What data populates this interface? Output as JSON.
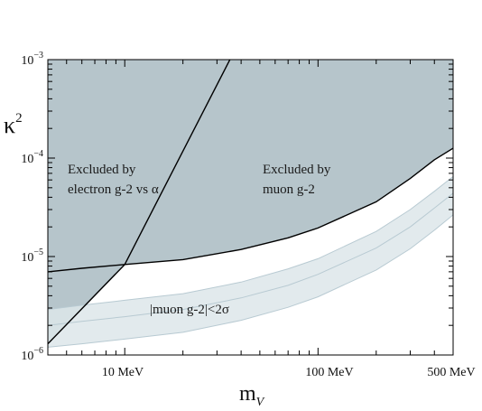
{
  "chart_data": {
    "type": "area",
    "title": "",
    "xlabel": {
      "base": "m",
      "sub": "V"
    },
    "ylabel": {
      "base": "κ",
      "sup": "2"
    },
    "x_scale": "log",
    "y_scale": "log",
    "xlim": [
      4,
      500
    ],
    "ylim": [
      1e-06,
      0.001
    ],
    "x_unit": "MeV",
    "x_tick_labels": [
      {
        "value": 10,
        "label": "10 MeV"
      },
      {
        "value": 100,
        "label": "100 MeV"
      },
      {
        "value": 500,
        "label": "500 MeV"
      }
    ],
    "y_tick_labels": [
      {
        "value": 1e-06,
        "base": "10",
        "exp": "−6"
      },
      {
        "value": 1e-05,
        "base": "10",
        "exp": "−5"
      },
      {
        "value": 0.0001,
        "base": "10",
        "exp": "−4"
      },
      {
        "value": 0.001,
        "base": "10",
        "exp": "−3"
      }
    ],
    "grid": false,
    "series": [
      {
        "key": "muon",
        "label": [
          "Excluded by",
          "muon g-2"
        ],
        "fill": "#b6c5cb",
        "boundary": [
          [
            4,
            7e-06
          ],
          [
            6,
            7.6e-06
          ],
          [
            10,
            8.3e-06
          ],
          [
            20,
            9.3e-06
          ],
          [
            40,
            1.18e-05
          ],
          [
            70,
            1.55e-05
          ],
          [
            100,
            1.95e-05
          ],
          [
            200,
            3.6e-05
          ],
          [
            300,
            6.2e-05
          ],
          [
            400,
            9.6e-05
          ],
          [
            500,
            0.000126
          ]
        ]
      },
      {
        "key": "electron",
        "label": [
          "Excluded by",
          "electron g-2 vs α"
        ],
        "fill": "#b6c5cb",
        "boundary": [
          [
            4,
            1.3e-06
          ],
          [
            10,
            8.3e-06
          ],
          [
            35,
            0.001
          ]
        ]
      },
      {
        "key": "band",
        "label": [
          "|muon g-2|<2σ"
        ],
        "fill": "#dde6ea",
        "upper": [
          [
            4,
            2.9e-06
          ],
          [
            6,
            3.2e-06
          ],
          [
            10,
            3.6e-06
          ],
          [
            20,
            4.2e-06
          ],
          [
            40,
            5.5e-06
          ],
          [
            70,
            7.5e-06
          ],
          [
            100,
            9.5e-06
          ],
          [
            200,
            1.8e-05
          ],
          [
            300,
            3e-05
          ],
          [
            400,
            4.6e-05
          ],
          [
            500,
            6.5e-05
          ]
        ],
        "center": [
          [
            4,
            2e-06
          ],
          [
            6,
            2.2e-06
          ],
          [
            10,
            2.45e-06
          ],
          [
            20,
            2.9e-06
          ],
          [
            40,
            3.8e-06
          ],
          [
            70,
            5.1e-06
          ],
          [
            100,
            6.6e-06
          ],
          [
            200,
            1.22e-05
          ],
          [
            300,
            2e-05
          ],
          [
            400,
            3.1e-05
          ],
          [
            500,
            4.4e-05
          ]
        ],
        "lower": [
          [
            4,
            1.2e-06
          ],
          [
            6,
            1.3e-06
          ],
          [
            10,
            1.45e-06
          ],
          [
            20,
            1.7e-06
          ],
          [
            40,
            2.25e-06
          ],
          [
            70,
            3.05e-06
          ],
          [
            100,
            3.9e-06
          ],
          [
            200,
            7.3e-06
          ],
          [
            300,
            1.2e-05
          ],
          [
            400,
            1.85e-05
          ],
          [
            500,
            2.65e-05
          ]
        ]
      }
    ],
    "colors": {
      "excluded": "#b6c5cb",
      "band": "#dde6ea",
      "band_edge": "#b8cad2",
      "boundary_line": "#000000"
    }
  }
}
